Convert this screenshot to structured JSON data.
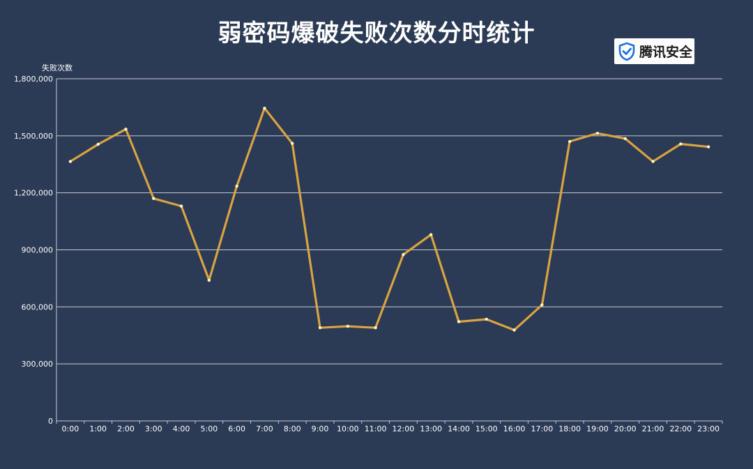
{
  "title": "弱密码爆破失败次数分时统计",
  "logo": {
    "text": "腾讯安全",
    "icon": "shield-check-icon"
  },
  "colors": {
    "background": "#2b3a55",
    "line": "#d9a441",
    "point": "#fff3c4",
    "grid": "#c8ccd6",
    "text": "#ffffff"
  },
  "chart_data": {
    "type": "line",
    "title": "弱密码爆破失败次数分时统计",
    "xlabel": "",
    "ylabel": "失败次数",
    "ylim": [
      0,
      1800000
    ],
    "yticks": [
      0,
      300000,
      600000,
      900000,
      1200000,
      1500000,
      1800000
    ],
    "ytick_labels": [
      "0",
      "300,000",
      "600,000",
      "900,000",
      "1,200,000",
      "1,500,000",
      "1,800,000"
    ],
    "grid": true,
    "categories": [
      "0:00",
      "1:00",
      "2:00",
      "3:00",
      "4:00",
      "5:00",
      "6:00",
      "7:00",
      "8:00",
      "9:00",
      "10:00",
      "11:00",
      "12:00",
      "13:00",
      "14:00",
      "15:00",
      "16:00",
      "17:00",
      "18:00",
      "19:00",
      "20:00",
      "21:00",
      "22:00",
      "23:00"
    ],
    "series": [
      {
        "name": "",
        "values": [
          1365000,
          1455000,
          1535000,
          1170000,
          1130000,
          740000,
          1235000,
          1645000,
          1460000,
          490000,
          498000,
          490000,
          875000,
          980000,
          522000,
          535000,
          478000,
          610000,
          1470000,
          1513000,
          1485000,
          1365000,
          1457000,
          1442000
        ]
      }
    ]
  }
}
